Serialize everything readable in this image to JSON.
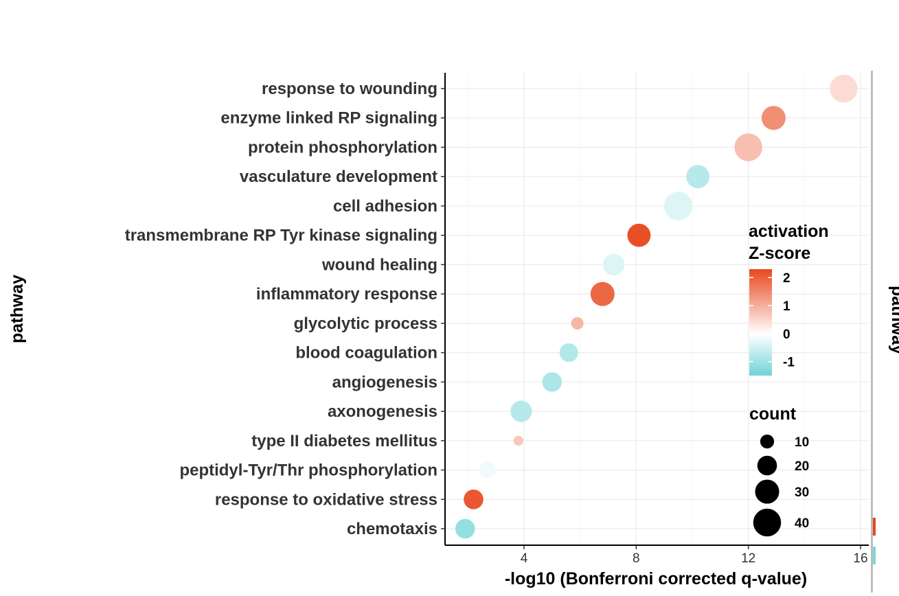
{
  "chart_data": {
    "type": "scatter",
    "title": "",
    "xlabel": "-log10 (Bonferroni corrected q-value)",
    "ylabel": "pathway",
    "xlim": [
      1.8,
      17
    ],
    "xticks": [
      4,
      8,
      12,
      16
    ],
    "grid": true,
    "points": [
      {
        "pathway": "response to wounding",
        "x": 15.4,
        "z": 0.45,
        "count": 40
      },
      {
        "pathway": "enzyme linked RP signaling",
        "x": 12.9,
        "z": 1.4,
        "count": 30
      },
      {
        "pathway": "protein phosphorylation",
        "x": 12.0,
        "z": 0.8,
        "count": 40
      },
      {
        "pathway": "vasculature development",
        "x": 10.2,
        "z": -0.75,
        "count": 28
      },
      {
        "pathway": "cell adhesion",
        "x": 9.5,
        "z": -0.35,
        "count": 42
      },
      {
        "pathway": "transmembrane RP Tyr kinase signaling",
        "x": 8.1,
        "z": 2.2,
        "count": 28
      },
      {
        "pathway": "wound healing",
        "x": 7.2,
        "z": -0.35,
        "count": 24
      },
      {
        "pathway": "inflammatory response",
        "x": 6.8,
        "z": 1.9,
        "count": 30
      },
      {
        "pathway": "glycolytic process",
        "x": 5.9,
        "z": 0.9,
        "count": 8
      },
      {
        "pathway": "blood coagulation",
        "x": 5.6,
        "z": -0.8,
        "count": 18
      },
      {
        "pathway": "angiogenesis",
        "x": 5.0,
        "z": -0.85,
        "count": 20
      },
      {
        "pathway": "axonogenesis",
        "x": 3.9,
        "z": -0.75,
        "count": 24
      },
      {
        "pathway": "type II diabetes mellitus",
        "x": 3.8,
        "z": 0.7,
        "count": 5
      },
      {
        "pathway": "peptidyl-Tyr/Thr phosphorylation",
        "x": 2.7,
        "z": -0.15,
        "count": 15
      },
      {
        "pathway": "response to oxidative stress",
        "x": 2.2,
        "z": 2.1,
        "count": 20
      },
      {
        "pathway": "chemotaxis",
        "x": 1.9,
        "z": -1.1,
        "count": 20
      }
    ],
    "color_legend": {
      "title": [
        "activation",
        "Z-score"
      ],
      "ticks": [
        2,
        1,
        0,
        -1
      ],
      "range": [
        -1.5,
        2.3
      ],
      "low_color": "#6fd3d6",
      "mid_color": "#ffffff",
      "high_color": "#e8471d",
      "placement": "right"
    },
    "size_legend": {
      "title": "count",
      "values": [
        10,
        20,
        30,
        40
      ],
      "color": "#000000",
      "placement": "right"
    },
    "right_clipped_label": "pathway"
  }
}
